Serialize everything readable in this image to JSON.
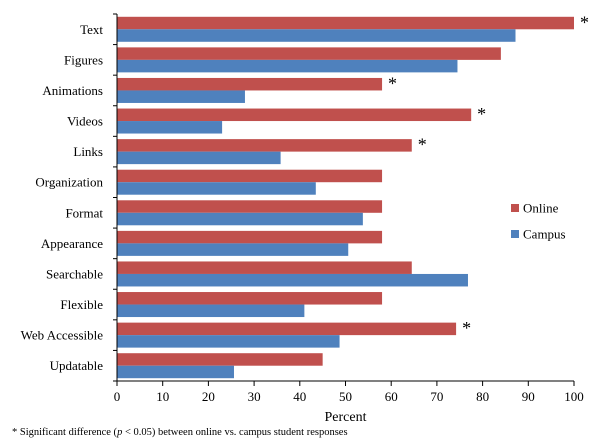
{
  "chart_data": {
    "type": "bar",
    "orientation": "horizontal",
    "categories": [
      "Text",
      "Figures",
      "Animations",
      "Videos",
      "Links",
      "Organization",
      "Format",
      "Appearance",
      "Searchable",
      "Flexible",
      "Web Accessible",
      "Updatable"
    ],
    "series": [
      {
        "name": "Online",
        "color": "#c0504d",
        "values": [
          100,
          84,
          58,
          77.5,
          64.5,
          58,
          58,
          58,
          64.5,
          58,
          74.2,
          45
        ]
      },
      {
        "name": "Campus",
        "color": "#4f81bd",
        "values": [
          87.2,
          74.5,
          28,
          23,
          35.8,
          43.5,
          53.8,
          50.6,
          76.8,
          41,
          48.7,
          25.6
        ]
      }
    ],
    "significant": [
      true,
      false,
      true,
      true,
      true,
      false,
      false,
      false,
      false,
      false,
      true,
      false
    ],
    "significance_marker": "*",
    "xlabel": "Percent",
    "ylabel": "",
    "xlim": [
      0,
      100
    ],
    "xticks": [
      0,
      10,
      20,
      30,
      40,
      50,
      60,
      70,
      80,
      90,
      100
    ],
    "legend_position": "right",
    "grid": false
  },
  "footnote_segments": [
    "* Significant difference (",
    "p",
    " < 0.05) between online vs. campus student responses"
  ]
}
